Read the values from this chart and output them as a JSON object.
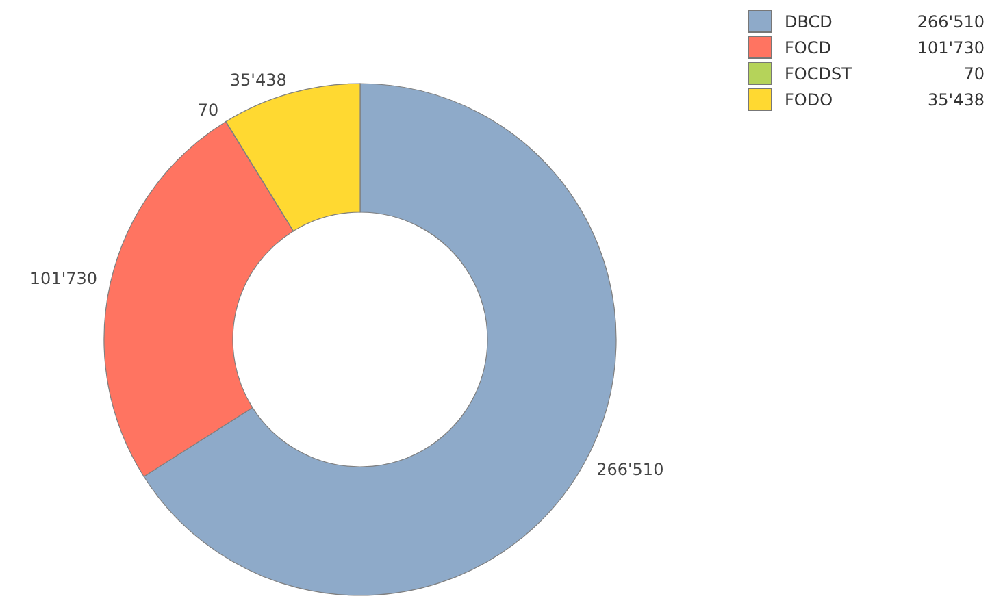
{
  "chart_data": {
    "type": "donut",
    "categories": [
      "DBCD",
      "FOCD",
      "FOCDST",
      "FODO"
    ],
    "values": [
      266510,
      101730,
      70,
      35438
    ],
    "value_labels": [
      "266'510",
      "101'730",
      "70",
      "35'438"
    ],
    "colors": [
      "#8eaac9",
      "#ff7461",
      "#b5d35a",
      "#ffd931"
    ],
    "legend": "top right"
  }
}
